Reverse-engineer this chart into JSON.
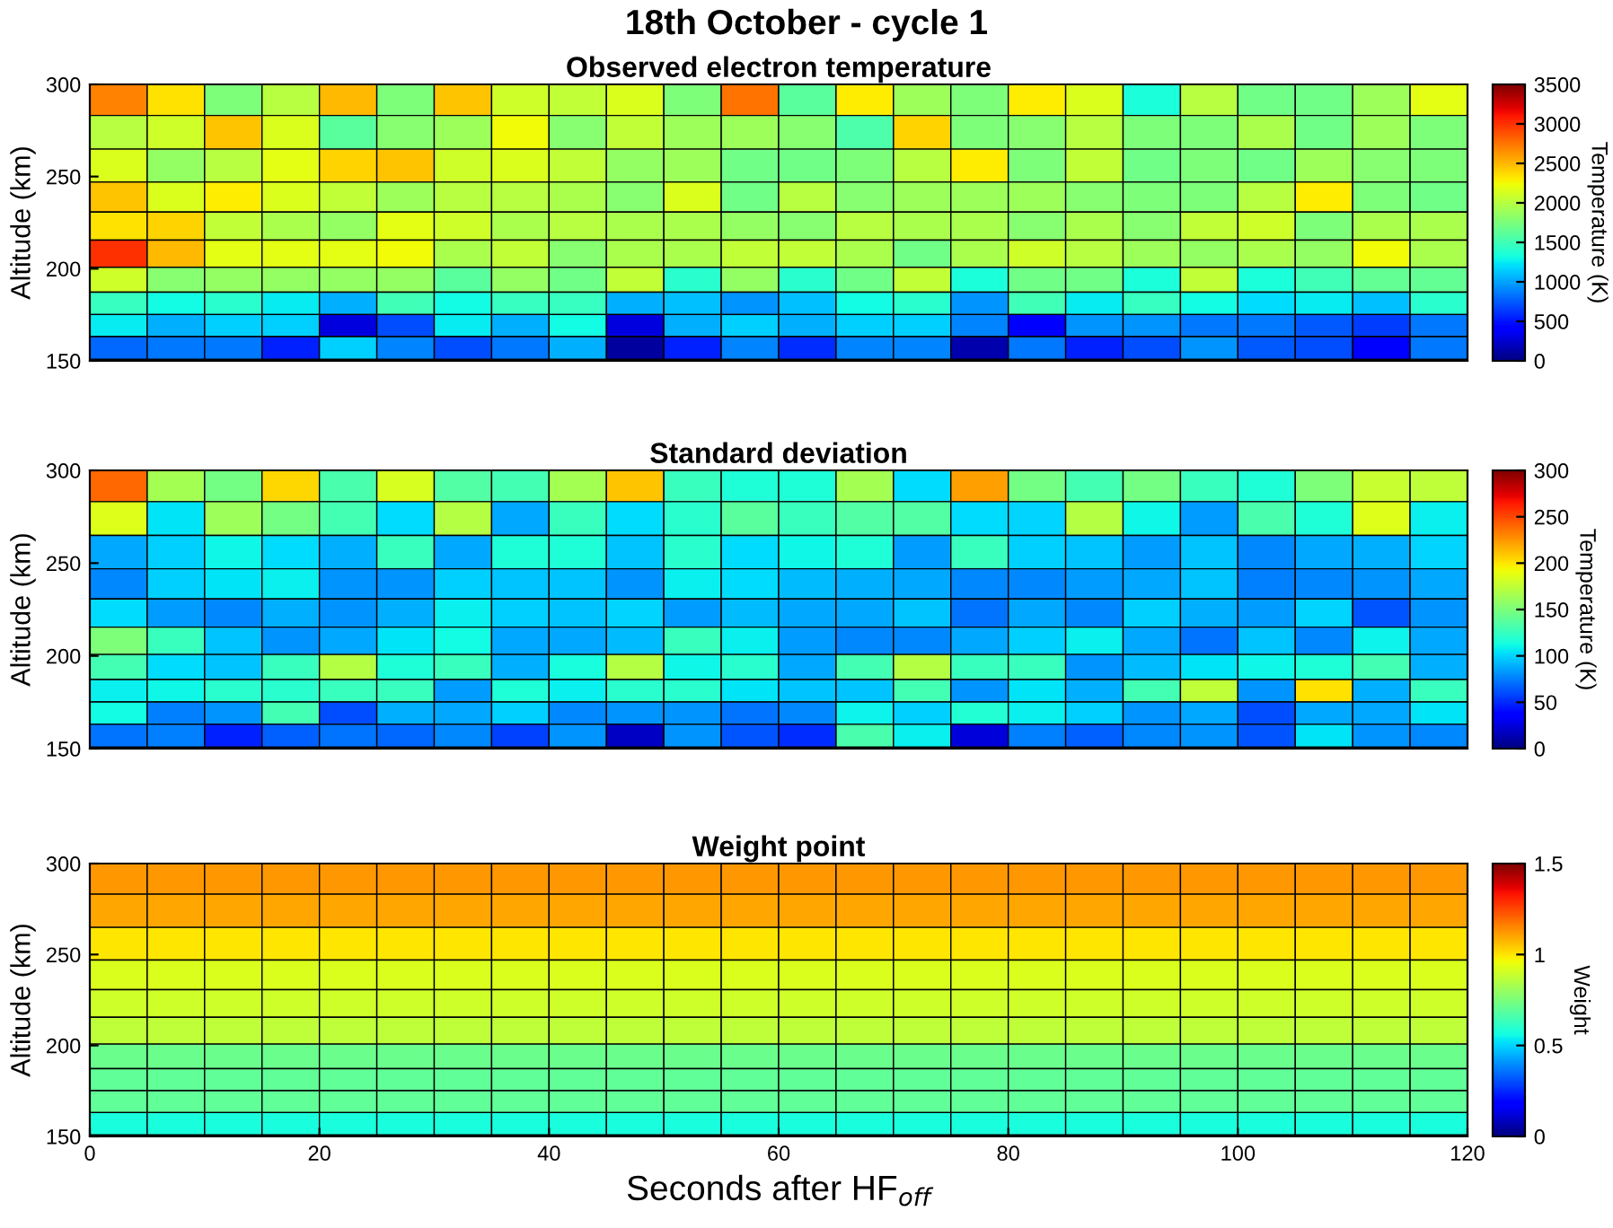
{
  "chart_data": [
    {
      "type": "heatmap",
      "title": "18th October - cycle 1",
      "subtitle": "Observed electron temperature",
      "ylabel": "Altitude (km)",
      "clabel": "Temperature (K)",
      "x": [
        2.5,
        7.5,
        12.5,
        17.5,
        22.5,
        27.5,
        32.5,
        37.5,
        42.5,
        47.5,
        52.5,
        57.5,
        62.5,
        67.5,
        72.5,
        77.5,
        82.5,
        87.5,
        92.5,
        97.5,
        102.5,
        107.5,
        112.5,
        117.5
      ],
      "y": [
        292,
        274.3,
        255.5,
        238.4,
        223,
        208,
        193.5,
        181,
        169.3,
        157
      ],
      "xlim": [
        0,
        120
      ],
      "ylim": [
        150,
        300
      ],
      "yticks": [
        150,
        200,
        250,
        300
      ],
      "tick_labels": "y",
      "clim": [
        0,
        3500
      ],
      "cticks": [
        0,
        500,
        1000,
        1500,
        2000,
        2500,
        3000,
        3500
      ],
      "cells": [
        [
          2700,
          2350,
          1750,
          2000,
          2500,
          1750,
          2450,
          2100,
          2050,
          2150,
          1750,
          2750,
          1600,
          2300,
          1900,
          1750,
          2300,
          2150,
          1350,
          2000,
          1700,
          1700,
          1900,
          2200
        ],
        [
          2000,
          2100,
          2450,
          2150,
          1600,
          1800,
          1900,
          2250,
          1800,
          2050,
          1900,
          1900,
          1800,
          1550,
          2400,
          1750,
          1800,
          2000,
          1750,
          1750,
          1950,
          1700,
          1900,
          1750
        ],
        [
          2150,
          1850,
          2000,
          2200,
          2400,
          2450,
          2100,
          2150,
          2050,
          1850,
          1900,
          1700,
          1700,
          1750,
          2000,
          2300,
          1750,
          2050,
          1700,
          1750,
          1700,
          1900,
          1800,
          1750
        ],
        [
          2450,
          2150,
          2300,
          2150,
          2050,
          1900,
          2000,
          2000,
          1950,
          1800,
          2150,
          1700,
          2000,
          1800,
          1900,
          1900,
          1900,
          1800,
          1750,
          1750,
          2000,
          2300,
          1750,
          1700
        ],
        [
          2350,
          2400,
          2050,
          1950,
          1850,
          2200,
          2100,
          1950,
          2000,
          1950,
          1950,
          1850,
          1800,
          2000,
          1950,
          1950,
          1800,
          1950,
          1800,
          2050,
          2100,
          1750,
          1950,
          1950
        ],
        [
          3000,
          2500,
          2200,
          2200,
          2200,
          2250,
          1950,
          2050,
          1800,
          1950,
          1950,
          2050,
          2050,
          1950,
          1700,
          1950,
          2100,
          2000,
          1900,
          1850,
          1950,
          1850,
          2250,
          1950
        ],
        [
          2100,
          1800,
          1850,
          1850,
          1850,
          1850,
          1600,
          1850,
          1700,
          2050,
          1400,
          1850,
          1400,
          1700,
          2050,
          1350,
          1700,
          1700,
          1350,
          2050,
          1350,
          1500,
          1650,
          1650
        ],
        [
          1450,
          1300,
          1400,
          1250,
          1050,
          1500,
          1300,
          1450,
          1450,
          1050,
          1100,
          950,
          1100,
          1300,
          1400,
          950,
          1500,
          1250,
          1450,
          1300,
          1200,
          1250,
          1100,
          1400
        ],
        [
          1250,
          1050,
          1150,
          1150,
          300,
          700,
          1250,
          1050,
          1300,
          300,
          1050,
          1150,
          1050,
          1150,
          1150,
          900,
          450,
          950,
          950,
          850,
          850,
          750,
          650,
          850
        ],
        [
          800,
          850,
          850,
          550,
          1150,
          900,
          700,
          850,
          1050,
          100,
          550,
          900,
          600,
          900,
          900,
          150,
          850,
          550,
          700,
          950,
          750,
          700,
          450,
          850
        ]
      ]
    },
    {
      "type": "heatmap",
      "subtitle": "Standard deviation",
      "ylabel": "Altitude (km)",
      "clabel": "Temperature (K)",
      "x": [
        2.5,
        7.5,
        12.5,
        17.5,
        22.5,
        27.5,
        32.5,
        37.5,
        42.5,
        47.5,
        52.5,
        57.5,
        62.5,
        67.5,
        72.5,
        77.5,
        82.5,
        87.5,
        92.5,
        97.5,
        102.5,
        107.5,
        112.5,
        117.5
      ],
      "y": [
        292,
        274.3,
        255.5,
        238.4,
        223,
        208,
        193.5,
        181,
        169.3,
        157
      ],
      "xlim": [
        0,
        120
      ],
      "ylim": [
        150,
        300
      ],
      "yticks": [
        150,
        200,
        250,
        300
      ],
      "tick_labels": "y",
      "clim": [
        0,
        300
      ],
      "cticks": [
        0,
        50,
        100,
        150,
        200,
        250,
        300
      ],
      "cells": [
        [
          240,
          165,
          147,
          204,
          132,
          183,
          135,
          129,
          165,
          210,
          126,
          117,
          117,
          165,
          102,
          222,
          147,
          129,
          147,
          126,
          117,
          150,
          177,
          174
        ],
        [
          186,
          105,
          162,
          147,
          129,
          102,
          171,
          87,
          126,
          102,
          120,
          138,
          126,
          135,
          135,
          102,
          100,
          171,
          111,
          84,
          132,
          117,
          186,
          108
        ],
        [
          87,
          99,
          111,
          102,
          90,
          126,
          87,
          117,
          117,
          96,
          120,
          102,
          111,
          117,
          84,
          126,
          99,
          96,
          84,
          96,
          78,
          87,
          90,
          100
        ],
        [
          78,
          99,
          105,
          108,
          81,
          81,
          99,
          96,
          96,
          81,
          108,
          102,
          93,
          90,
          87,
          78,
          78,
          84,
          87,
          96,
          75,
          78,
          81,
          87
        ],
        [
          102,
          84,
          78,
          90,
          81,
          90,
          108,
          99,
          96,
          100,
          84,
          93,
          87,
          87,
          96,
          72,
          87,
          78,
          99,
          90,
          84,
          100,
          63,
          81
        ],
        [
          150,
          126,
          96,
          81,
          87,
          105,
          112,
          87,
          87,
          93,
          126,
          108,
          84,
          78,
          78,
          87,
          99,
          108,
          87,
          72,
          96,
          78,
          110,
          87
        ],
        [
          129,
          102,
          96,
          126,
          171,
          117,
          126,
          90,
          114,
          171,
          111,
          120,
          87,
          129,
          171,
          126,
          126,
          81,
          93,
          105,
          111,
          117,
          129,
          90
        ],
        [
          108,
          111,
          120,
          120,
          126,
          126,
          84,
          117,
          108,
          120,
          120,
          105,
          96,
          96,
          129,
          81,
          105,
          90,
          129,
          174,
          81,
          201,
          90,
          126
        ],
        [
          112,
          75,
          81,
          129,
          60,
          90,
          87,
          99,
          78,
          81,
          81,
          72,
          78,
          110,
          99,
          118,
          108,
          99,
          81,
          87,
          60,
          87,
          87,
          105
        ],
        [
          72,
          75,
          48,
          66,
          72,
          69,
          78,
          57,
          81,
          18,
          81,
          63,
          51,
          132,
          108,
          24,
          75,
          66,
          78,
          81,
          63,
          105,
          81,
          78
        ]
      ]
    },
    {
      "type": "heatmap",
      "subtitle": "Weight point",
      "ylabel": "Altitude (km)",
      "xlabel": "Seconds after HF$_{off}$",
      "clabel": "Weight",
      "x": [
        2.5,
        7.5,
        12.5,
        17.5,
        22.5,
        27.5,
        32.5,
        37.5,
        42.5,
        47.5,
        52.5,
        57.5,
        62.5,
        67.5,
        72.5,
        77.5,
        82.5,
        87.5,
        92.5,
        97.5,
        102.5,
        107.5,
        112.5,
        117.5
      ],
      "y": [
        292,
        274.3,
        255.5,
        238.4,
        223,
        208,
        193.5,
        181,
        169.3,
        157
      ],
      "xlim": [
        0,
        120
      ],
      "xticks": [
        0,
        20,
        40,
        60,
        80,
        100,
        120
      ],
      "ylim": [
        150,
        300
      ],
      "yticks": [
        150,
        200,
        250,
        300
      ],
      "clim": [
        0,
        1.5
      ],
      "cticks": [
        0,
        0.5,
        1,
        1.5
      ],
      "cells": [
        [
          1.12,
          1.12,
          1.12,
          1.12,
          1.12,
          1.12,
          1.12,
          1.12,
          1.12,
          1.12,
          1.12,
          1.12,
          1.12,
          1.12,
          1.12,
          1.12,
          1.12,
          1.12,
          1.12,
          1.12,
          1.12,
          1.12,
          1.12,
          1.12
        ],
        [
          1.1,
          1.1,
          1.1,
          1.1,
          1.1,
          1.1,
          1.1,
          1.1,
          1.1,
          1.1,
          1.1,
          1.1,
          1.1,
          1.1,
          1.1,
          1.1,
          1.1,
          1.1,
          1.1,
          1.1,
          1.1,
          1.1,
          1.1,
          1.1
        ],
        [
          1.0,
          1.0,
          1.0,
          1.0,
          1.0,
          1.0,
          1.0,
          1.0,
          1.0,
          1.0,
          1.0,
          1.0,
          1.0,
          1.0,
          1.0,
          1.0,
          1.0,
          1.0,
          1.0,
          1.0,
          1.0,
          1.0,
          1.0,
          1.0
        ],
        [
          0.92,
          0.92,
          0.92,
          0.92,
          0.92,
          0.92,
          0.92,
          0.92,
          0.92,
          0.92,
          0.92,
          0.92,
          0.92,
          0.92,
          0.92,
          0.92,
          0.92,
          0.92,
          0.92,
          0.92,
          0.92,
          0.92,
          0.92,
          0.92
        ],
        [
          0.9,
          0.9,
          0.9,
          0.9,
          0.9,
          0.9,
          0.9,
          0.9,
          0.9,
          0.9,
          0.9,
          0.9,
          0.9,
          0.9,
          0.9,
          0.9,
          0.9,
          0.9,
          0.9,
          0.9,
          0.9,
          0.9,
          0.9,
          0.9
        ],
        [
          0.87,
          0.87,
          0.87,
          0.87,
          0.87,
          0.87,
          0.87,
          0.87,
          0.87,
          0.87,
          0.87,
          0.87,
          0.87,
          0.87,
          0.87,
          0.87,
          0.87,
          0.87,
          0.87,
          0.87,
          0.87,
          0.87,
          0.87,
          0.87
        ],
        [
          0.72,
          0.72,
          0.72,
          0.72,
          0.72,
          0.72,
          0.72,
          0.72,
          0.72,
          0.72,
          0.72,
          0.72,
          0.72,
          0.72,
          0.72,
          0.72,
          0.72,
          0.72,
          0.72,
          0.72,
          0.72,
          0.72,
          0.72,
          0.72
        ],
        [
          0.7,
          0.7,
          0.7,
          0.7,
          0.7,
          0.7,
          0.7,
          0.7,
          0.7,
          0.7,
          0.7,
          0.7,
          0.7,
          0.7,
          0.7,
          0.7,
          0.7,
          0.7,
          0.7,
          0.7,
          0.7,
          0.7,
          0.7,
          0.7
        ],
        [
          0.7,
          0.7,
          0.7,
          0.7,
          0.7,
          0.7,
          0.7,
          0.7,
          0.7,
          0.7,
          0.7,
          0.7,
          0.7,
          0.7,
          0.7,
          0.7,
          0.7,
          0.7,
          0.7,
          0.7,
          0.7,
          0.7,
          0.7,
          0.7
        ],
        [
          0.57,
          0.57,
          0.57,
          0.57,
          0.57,
          0.57,
          0.57,
          0.57,
          0.57,
          0.57,
          0.57,
          0.57,
          0.57,
          0.57,
          0.57,
          0.57,
          0.57,
          0.57,
          0.57,
          0.57,
          0.57,
          0.57,
          0.57,
          0.57
        ]
      ]
    }
  ]
}
